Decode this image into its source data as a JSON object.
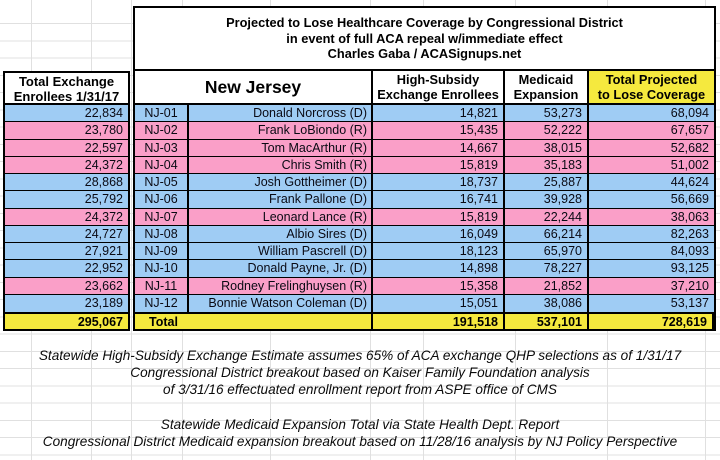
{
  "title": {
    "line1": "Projected to Lose Healthcare Coverage by Congressional District",
    "line2": "in event of full ACA repeal w/immediate effect",
    "line3": "Charles Gaba / ACASignups.net"
  },
  "left_table": {
    "header": "Total Exchange Enrollees 1/31/17"
  },
  "main_table": {
    "state_header": "New Jersey",
    "columns": {
      "exchange_line1": "High-Subsidy",
      "exchange_line2": "Exchange Enrollees",
      "medicaid_line1": "Medicaid",
      "medicaid_line2": "Expansion",
      "total_line1": "Total Projected",
      "total_line2": "to Lose Coverage"
    }
  },
  "rows": [
    {
      "total_exchange_enrollees": "22,834",
      "district": "NJ-01",
      "rep": "Donald Norcross (D)",
      "party": "D",
      "exchange": "14,821",
      "medicaid": "53,273",
      "total": "68,094"
    },
    {
      "total_exchange_enrollees": "23,780",
      "district": "NJ-02",
      "rep": "Frank LoBiondo (R)",
      "party": "R",
      "exchange": "15,435",
      "medicaid": "52,222",
      "total": "67,657"
    },
    {
      "total_exchange_enrollees": "22,597",
      "district": "NJ-03",
      "rep": "Tom MacArthur (R)",
      "party": "R",
      "exchange": "14,667",
      "medicaid": "38,015",
      "total": "52,682"
    },
    {
      "total_exchange_enrollees": "24,372",
      "district": "NJ-04",
      "rep": "Chris Smith (R)",
      "party": "R",
      "exchange": "15,819",
      "medicaid": "35,183",
      "total": "51,002"
    },
    {
      "total_exchange_enrollees": "28,868",
      "district": "NJ-05",
      "rep": "Josh Gottheimer (D)",
      "party": "D",
      "exchange": "18,737",
      "medicaid": "25,887",
      "total": "44,624"
    },
    {
      "total_exchange_enrollees": "25,792",
      "district": "NJ-06",
      "rep": "Frank Pallone (D)",
      "party": "D",
      "exchange": "16,741",
      "medicaid": "39,928",
      "total": "56,669"
    },
    {
      "total_exchange_enrollees": "24,372",
      "district": "NJ-07",
      "rep": "Leonard Lance (R)",
      "party": "R",
      "exchange": "15,819",
      "medicaid": "22,244",
      "total": "38,063"
    },
    {
      "total_exchange_enrollees": "24,727",
      "district": "NJ-08",
      "rep": "Albio Sires (D)",
      "party": "D",
      "exchange": "16,049",
      "medicaid": "66,214",
      "total": "82,263"
    },
    {
      "total_exchange_enrollees": "27,921",
      "district": "NJ-09",
      "rep": "William Pascrell (D)",
      "party": "D",
      "exchange": "18,123",
      "medicaid": "65,970",
      "total": "84,093"
    },
    {
      "total_exchange_enrollees": "22,952",
      "district": "NJ-10",
      "rep": "Donald Payne, Jr. (D)",
      "party": "D",
      "exchange": "14,898",
      "medicaid": "78,227",
      "total": "93,125"
    },
    {
      "total_exchange_enrollees": "23,662",
      "district": "NJ-11",
      "rep": "Rodney Frelinghuysen (R)",
      "party": "R",
      "exchange": "15,358",
      "medicaid": "21,852",
      "total": "37,210"
    },
    {
      "total_exchange_enrollees": "23,189",
      "district": "NJ-12",
      "rep": "Bonnie Watson Coleman (D)",
      "party": "D",
      "exchange": "15,051",
      "medicaid": "38,086",
      "total": "53,137"
    }
  ],
  "totals": {
    "label": "Total",
    "total_exchange_enrollees": "295,067",
    "exchange": "191,518",
    "medicaid": "537,101",
    "total": "728,619"
  },
  "footnotes": {
    "exchange": [
      "Statewide High-Subsidy Exchange Estimate assumes 65% of ACA exchange QHP selections as of 1/31/17",
      "Congressional District breakout based on Kaiser Family Foundation analysis",
      "of 3/31/16 effectuated enrollment report from ASPE office of CMS"
    ],
    "medicaid": [
      "Statewide Medicaid Expansion Total via State Health Dept. Report",
      "Congressional District Medicaid expansion breakout based on 11/28/16 analysis by NJ Policy Perspective"
    ]
  },
  "colors": {
    "democrat_row": "#9FCCF4",
    "republican_row": "#FA9FC8",
    "highlight_yellow": "#F5E93E",
    "border": "#000000",
    "gridline": "#E0E0E0"
  }
}
